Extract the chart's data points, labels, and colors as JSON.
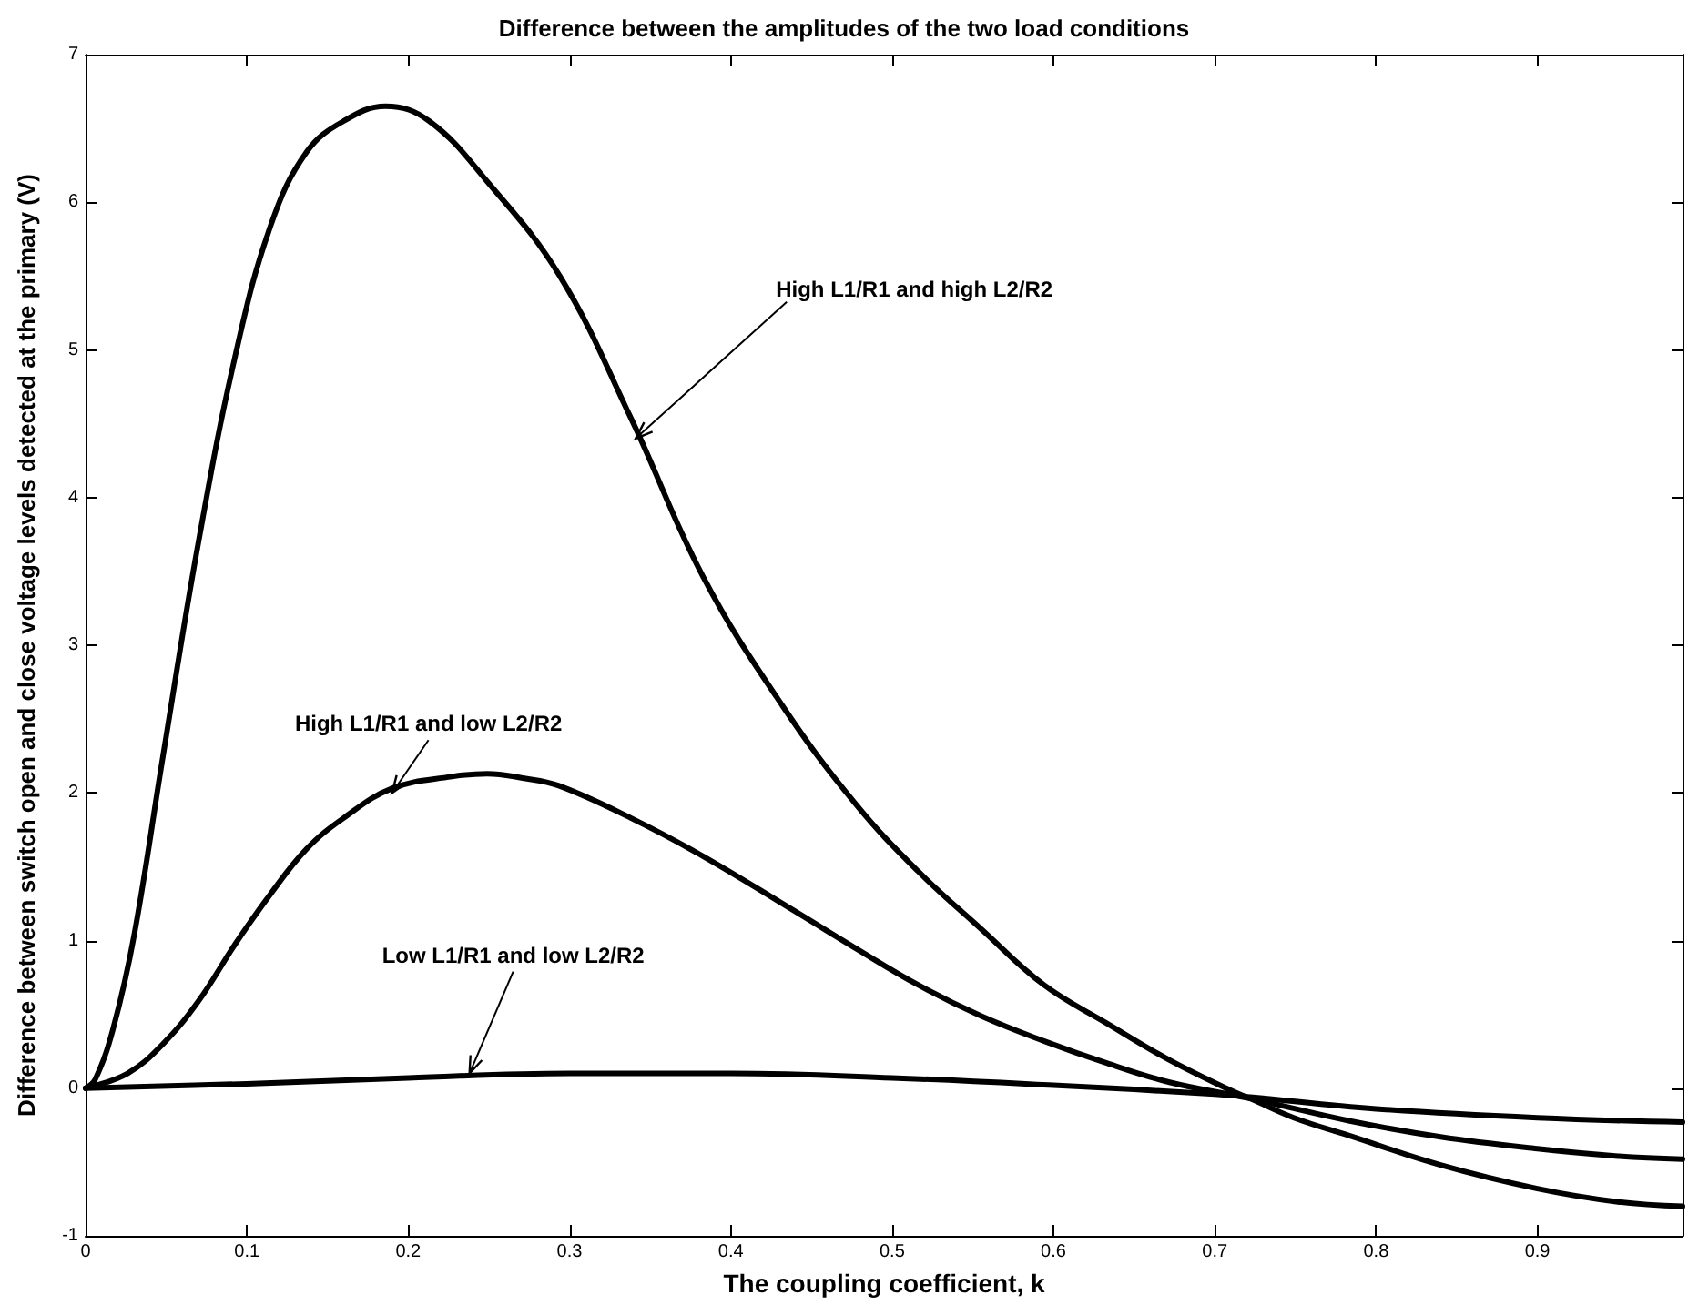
{
  "chart_data": {
    "type": "line",
    "title": "Difference between the amplitudes of the two load conditions",
    "xlabel": "The coupling coefficient, k",
    "ylabel": "Difference between switch open and close voltage levels detected at the primary (V)",
    "xlim": [
      0,
      0.99
    ],
    "ylim": [
      -1,
      7
    ],
    "xticks": [
      0,
      0.1,
      0.2,
      0.3,
      0.4,
      0.5,
      0.6,
      0.7,
      0.8,
      0.9
    ],
    "yticks": [
      -1,
      0,
      1,
      2,
      3,
      4,
      5,
      6,
      7
    ],
    "grid": false,
    "marker": "none",
    "line_style": "solid",
    "series": [
      {
        "color": "#000000",
        "x": [
          0,
          0.006,
          0.017,
          0.03,
          0.048,
          0.07,
          0.093,
          0.115,
          0.137,
          0.16,
          0.186,
          0.213,
          0.249,
          0.294,
          0.338,
          0.383,
          0.432,
          0.477,
          0.516,
          0.555,
          0.594,
          0.633,
          0.672,
          0.711,
          0.722,
          0.749,
          0.783,
          0.84,
          0.9,
          0.95,
          0.99
        ],
        "values": [
          0,
          0.06,
          0.4,
          1.03,
          2.25,
          3.7,
          4.97,
          5.85,
          6.34,
          6.55,
          6.65,
          6.55,
          6.14,
          5.5,
          4.54,
          3.46,
          2.59,
          1.93,
          1.47,
          1.08,
          0.7,
          0.44,
          0.19,
          -0.02,
          -0.07,
          -0.2,
          -0.32,
          -0.52,
          -0.68,
          -0.77,
          -0.8
        ]
      },
      {
        "color": "#000000",
        "x": [
          0,
          0.026,
          0.048,
          0.07,
          0.093,
          0.115,
          0.137,
          0.16,
          0.19,
          0.227,
          0.249,
          0.271,
          0.293,
          0.338,
          0.383,
          0.438,
          0.477,
          0.516,
          0.555,
          0.594,
          0.633,
          0.672,
          0.722,
          0.783,
          0.84,
          0.9,
          0.95,
          0.99
        ],
        "values": [
          0,
          0.1,
          0.3,
          0.59,
          0.98,
          1.32,
          1.62,
          1.83,
          2.03,
          2.11,
          2.13,
          2.1,
          2.05,
          1.83,
          1.57,
          1.21,
          0.95,
          0.7,
          0.49,
          0.32,
          0.17,
          0.04,
          -0.07,
          -0.22,
          -0.33,
          -0.41,
          -0.46,
          -0.48
        ]
      },
      {
        "color": "#000000",
        "x": [
          0,
          0.1,
          0.2,
          0.3,
          0.4,
          0.5,
          0.6,
          0.7,
          0.722,
          0.8,
          0.9,
          0.99
        ],
        "values": [
          0,
          0.03,
          0.07,
          0.1,
          0.1,
          0.07,
          0.02,
          -0.04,
          -0.06,
          -0.14,
          -0.2,
          -0.23
        ]
      }
    ],
    "annotations": [
      {
        "text": "High L1/R1 and high L2/R2",
        "x": 0.341,
        "y": 4.4
      },
      {
        "text": "High L1/R1 and low L2/R2",
        "x": 0.19,
        "y": 2.0
      },
      {
        "text": "Low L1/R1 and low L2/R2",
        "x": 0.238,
        "y": 0.1
      }
    ]
  }
}
